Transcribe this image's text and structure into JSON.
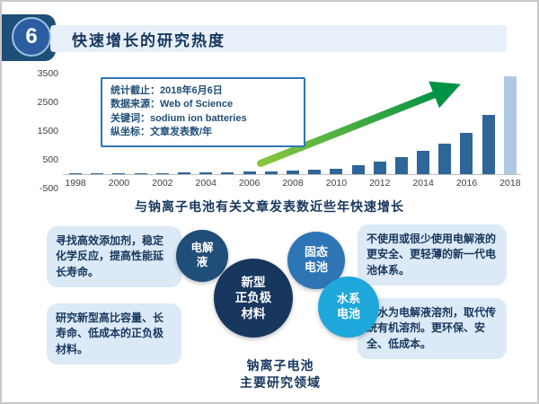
{
  "header": {
    "number": "6",
    "title": "快速增长的研究热度"
  },
  "chart_data": {
    "type": "bar",
    "title": "与钠离子电池有关文章发表数近些年快速增长",
    "x": [
      1998,
      1999,
      2000,
      2001,
      2002,
      2003,
      2004,
      2005,
      2006,
      2007,
      2008,
      2009,
      2010,
      2011,
      2012,
      2013,
      2014,
      2015,
      2016,
      2017,
      2018
    ],
    "values": [
      20,
      25,
      30,
      35,
      45,
      55,
      60,
      70,
      85,
      100,
      120,
      150,
      200,
      300,
      430,
      600,
      800,
      1050,
      1450,
      2050,
      3400
    ],
    "xticks": [
      1998,
      2000,
      2002,
      2004,
      2006,
      2008,
      2010,
      2012,
      2014,
      2016,
      2018
    ],
    "yticks": [
      3500,
      2500,
      1500,
      500,
      -500
    ],
    "ylim": [
      -500,
      3500
    ],
    "ylabel": "文章发表数/年",
    "bar_color": "#2E6699",
    "highlight_color": "#AFC8E4",
    "arrow_color": "#009245",
    "annotation_lines": [
      "统计截止：2018年6月6日",
      "数据来源：Web of Science",
      "关键词：sodium ion batteries",
      "纵坐标：文章发表数/年"
    ]
  },
  "callouts": {
    "left_top": "寻找高效添加剂，稳定化学反应，提高性能延长寿命。",
    "left_bottom": "研究新型高比容量、长寿命、低成本的正负极材料。",
    "right_top": "不使用或很少使用电解液的更安全、更轻薄的新一代电池体系。",
    "right_bottom": "以水为电解液溶剂，取代传统有机溶剂。更环保、安全、低成本。"
  },
  "bubbles": [
    {
      "label": "电解\n液",
      "color": "#1F4E79"
    },
    {
      "label": "新型\n正负极\n材料",
      "color": "#17375E"
    },
    {
      "label": "固态\n电池",
      "color": "#2E75B6"
    },
    {
      "label": "水系\n电池",
      "color": "#1FA8DC"
    }
  ],
  "footer": {
    "line1": "钠离子电池",
    "line2": "主要研究领域"
  }
}
